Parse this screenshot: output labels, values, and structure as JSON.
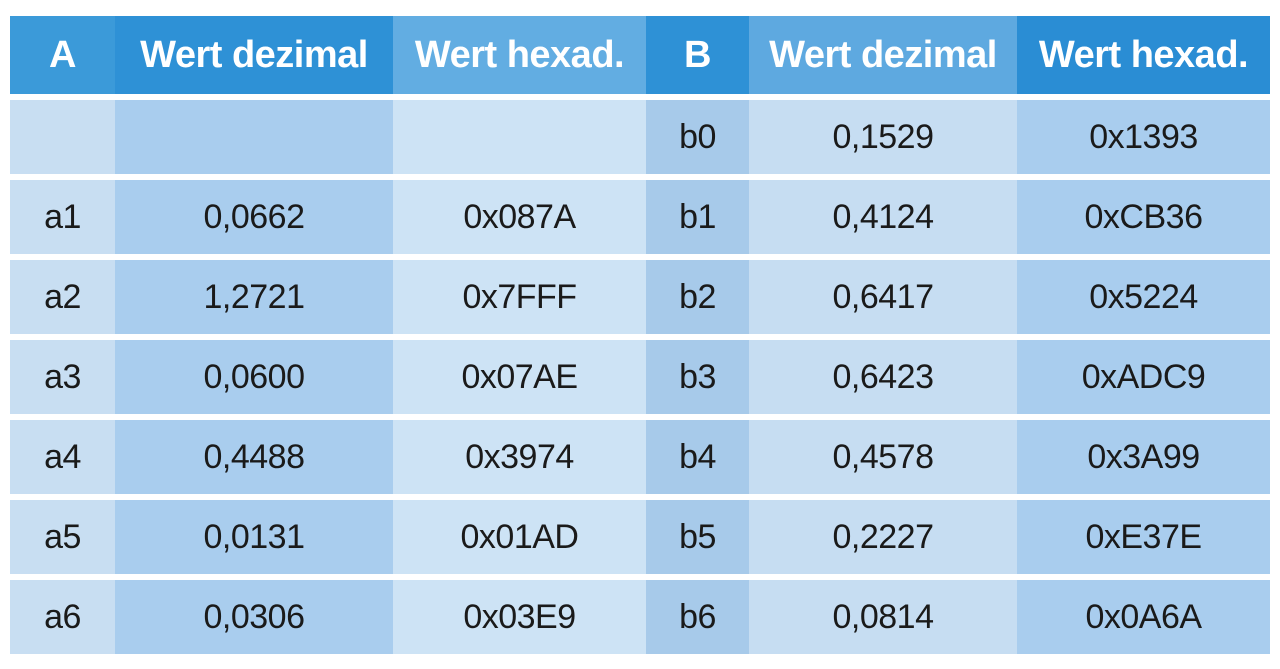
{
  "headers": [
    "A",
    "Wert dezimal",
    "Wert hexad.",
    "B",
    "Wert dezimal",
    "Wert hexad."
  ],
  "rows": [
    {
      "a": "",
      "a_dec": "",
      "a_hex": "",
      "b": "b0",
      "b_dec": "0,1529",
      "b_hex": "0x1393"
    },
    {
      "a": "a1",
      "a_dec": "0,0662",
      "a_hex": "0x087A",
      "b": "b1",
      "b_dec": "0,4124",
      "b_hex": "0xCB36"
    },
    {
      "a": "a2",
      "a_dec": "1,2721",
      "a_hex": "0x7FFF",
      "b": "b2",
      "b_dec": "0,6417",
      "b_hex": "0x5224"
    },
    {
      "a": "a3",
      "a_dec": "0,0600",
      "a_hex": "0x07AE",
      "b": "b3",
      "b_dec": "0,6423",
      "b_hex": "0xADC9"
    },
    {
      "a": "a4",
      "a_dec": "0,4488",
      "a_hex": "0x3974",
      "b": "b4",
      "b_dec": "0,4578",
      "b_hex": "0x3A99"
    },
    {
      "a": "a5",
      "a_dec": "0,0131",
      "a_hex": "0x01AD",
      "b": "b5",
      "b_dec": "0,2227",
      "b_hex": "0xE37E"
    },
    {
      "a": "a6",
      "a_dec": "0,0306",
      "a_hex": "0x03E9",
      "b": "b6",
      "b_dec": "0,0814",
      "b_hex": "0x0A6A"
    }
  ],
  "colors": {
    "header_blue": "#2e91d6",
    "row_light": "#cde3f5",
    "row_mid": "#a9cdee"
  }
}
